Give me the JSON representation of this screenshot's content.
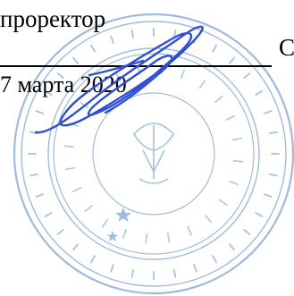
{
  "document": {
    "title_fragment": "проректор",
    "date_fragment": "7 марта 2020",
    "right_fragment": "С"
  },
  "stamp": {
    "color": "#8fb0d6",
    "description_icon": "round-seal-icon"
  },
  "signature": {
    "color": "#2f4fd0",
    "icon": "handwritten-signature-icon"
  }
}
